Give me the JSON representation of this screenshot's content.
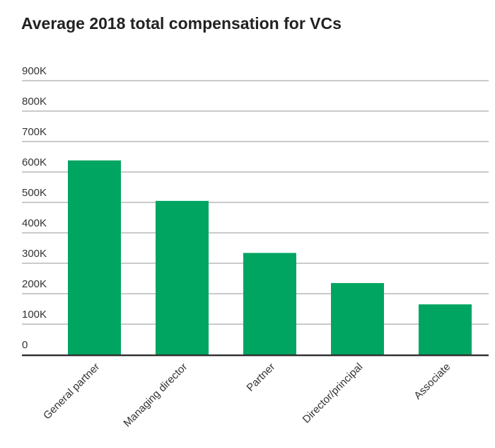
{
  "chart_data": {
    "type": "bar",
    "title": "Average 2018 total compensation for VCs",
    "categories": [
      "General partner",
      "Managing director",
      "Partner",
      "Director/principal",
      "Associate"
    ],
    "values": [
      638000,
      505000,
      334000,
      235000,
      165000
    ],
    "yticks": [
      "0",
      "100K",
      "200K",
      "300K",
      "400K",
      "500K",
      "600K",
      "700K",
      "800K",
      "900K"
    ],
    "ylim": [
      0,
      900000
    ],
    "xlabel": "",
    "ylabel": "",
    "grid": true,
    "bar_color": "#00a562"
  }
}
